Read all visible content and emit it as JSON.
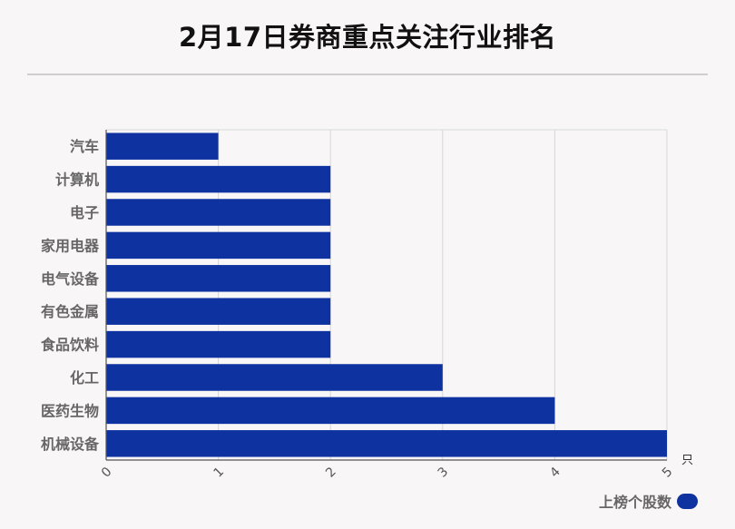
{
  "title": "2月17日券商重点关注行业排名",
  "legend": {
    "label": "上榜个股数"
  },
  "chart_data": {
    "type": "bar",
    "orientation": "horizontal",
    "categories": [
      "汽车",
      "计算机",
      "电子",
      "家用电器",
      "电气设备",
      "有色金属",
      "食品饮料",
      "化工",
      "医药生物",
      "机械设备"
    ],
    "series": [
      {
        "name": "上榜个股数",
        "values": [
          1,
          2,
          2,
          2,
          2,
          2,
          2,
          3,
          4,
          5
        ]
      }
    ],
    "x_ticks": [
      "0",
      "1",
      "2",
      "3",
      "4",
      "5"
    ],
    "xlim": [
      0,
      5
    ],
    "unit": "只",
    "grid": true,
    "bar_color": "#0e33a0",
    "legend_position": "bottom-right"
  }
}
